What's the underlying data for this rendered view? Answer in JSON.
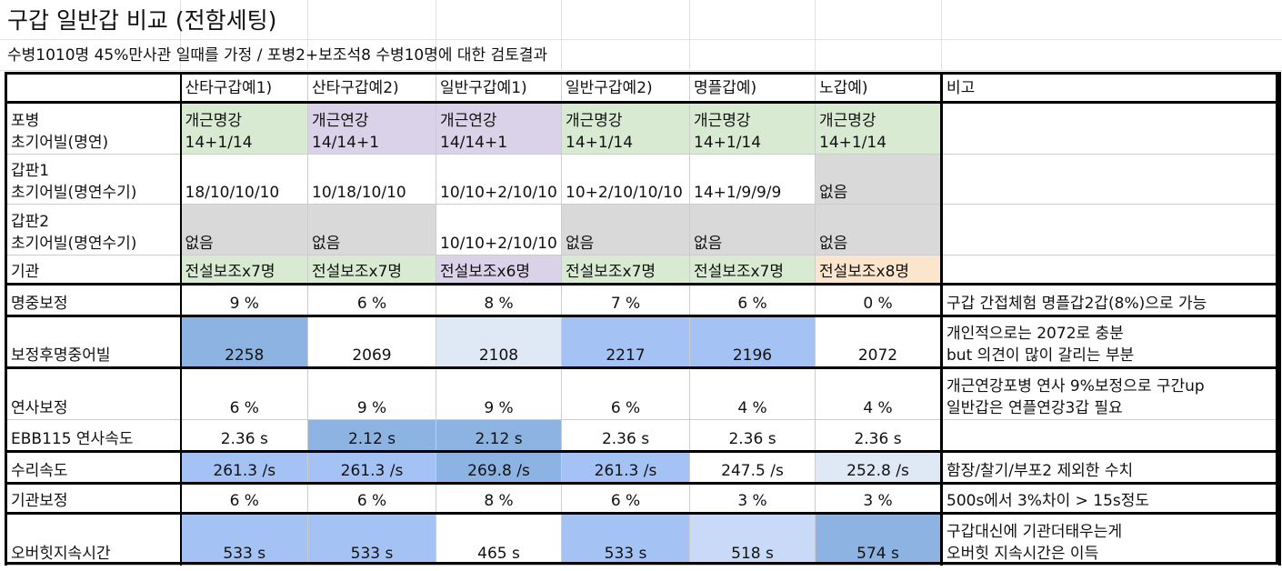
{
  "title": "구갑 일반갑 비교 (전함세팅)",
  "subtitle": "수병1010명 45%만사관 일때를 가정 / 포병2+보조석8 수병10명에 대한 검토결과",
  "colors": {
    "green": "#d9ead3",
    "purple": "#d9d2e9",
    "gray": "#d9d9d9",
    "orange": "#fce5cd",
    "blue_dark": "#6d9eeb",
    "blue_mid": "#8db3e2",
    "blue_light": "#a4c2f4",
    "blue_pale": "#c9daf8",
    "blue_faint": "#dfe8f5"
  },
  "headers": [
    "",
    "산타구갑예1)",
    "산타구갑예2)",
    "일반구갑예1)",
    "일반구갑예2)",
    "명플갑예)",
    "노갑예)",
    "비고"
  ],
  "rows": [
    {
      "label": "포병\n초기어빌(명연)",
      "cells": [
        "개근명강\n14+1/14",
        "개근연강\n14/14+1",
        "개근연강\n14/14+1",
        "개근명강\n14+1/14",
        "개근명강\n14+1/14",
        "개근명강\n14+1/14"
      ],
      "fills": [
        "green",
        "purple",
        "purple",
        "green",
        "green",
        "green"
      ],
      "note": ""
    },
    {
      "label": "갑판1\n초기어빌(명연수기)",
      "cells": [
        "18/10/10/10",
        "10/18/10/10",
        "10/10+2/10/10",
        "10+2/10/10/10",
        "14+1/9/9/9",
        "없음"
      ],
      "fills": [
        "",
        "",
        "",
        "",
        "",
        "gray"
      ],
      "note": ""
    },
    {
      "label": "갑판2\n초기어빌(명연수기)",
      "cells": [
        "없음",
        "없음",
        "10/10+2/10/10",
        "없음",
        "없음",
        "없음"
      ],
      "fills": [
        "gray",
        "gray",
        "",
        "gray",
        "gray",
        "gray"
      ],
      "note": ""
    },
    {
      "label": "기관",
      "cells": [
        "전설보조x7명",
        "전설보조x7명",
        "전설보조x6명",
        "전설보조x7명",
        "전설보조x7명",
        "전설보조x8명"
      ],
      "fills": [
        "green",
        "green",
        "purple",
        "green",
        "green",
        "orange"
      ],
      "note": ""
    },
    {
      "label": "명중보정",
      "cells": [
        "9 %",
        "6 %",
        "8 %",
        "7 %",
        "6 %",
        "0 %"
      ],
      "fills": [
        "",
        "",
        "",
        "",
        "",
        ""
      ],
      "note": "구갑 간접체험 명플갑2갑(8%)으로 가능"
    },
    {
      "label": "보정후명중어빌",
      "cells": [
        "2258",
        "2069",
        "2108",
        "2217",
        "2196",
        "2072"
      ],
      "fills": [
        "blue_mid",
        "",
        "blue_faint",
        "blue_light",
        "blue_light",
        ""
      ],
      "note": "개인적으로는 2072로 충분\nbut 의견이 많이 갈리는 부분"
    },
    {
      "label": "연사보정",
      "cells": [
        "6 %",
        "9 %",
        "9 %",
        "6 %",
        "4 %",
        "4 %"
      ],
      "fills": [
        "",
        "",
        "",
        "",
        "",
        ""
      ],
      "note": "개근연강포병 연사 9%보정으로 구간up\n일반갑은 연플연강3갑 필요"
    },
    {
      "label": "EBB115 연사속도",
      "cells": [
        "2.36 s",
        "2.12 s",
        "2.12 s",
        "2.36 s",
        "2.36 s",
        "2.36 s"
      ],
      "fills": [
        "",
        "blue_mid",
        "blue_mid",
        "",
        "",
        ""
      ],
      "note": ""
    },
    {
      "label": "수리속도",
      "cells": [
        "261.3 /s",
        "261.3 /s",
        "269.8 /s",
        "261.3 /s",
        "247.5 /s",
        "252.8 /s"
      ],
      "fills": [
        "blue_light",
        "blue_light",
        "blue_mid",
        "blue_light",
        "",
        "blue_faint"
      ],
      "note": "함장/찰기/부포2 제외한 수치"
    },
    {
      "label": "기관보정",
      "cells": [
        "6 %",
        "6 %",
        "8 %",
        "6 %",
        "3 %",
        "3 %"
      ],
      "fills": [
        "",
        "",
        "",
        "",
        "",
        ""
      ],
      "note": "500s에서 3%차이 > 15s정도"
    },
    {
      "label": "오버힛지속시간",
      "cells": [
        "533 s",
        "533 s",
        "465 s",
        "533 s",
        "518 s",
        "574 s"
      ],
      "fills": [
        "blue_light",
        "blue_light",
        "",
        "blue_light",
        "blue_pale",
        "blue_mid"
      ],
      "note": "구갑대신에 기관더태우는게\n오버힛 지속시간은 이득"
    }
  ]
}
